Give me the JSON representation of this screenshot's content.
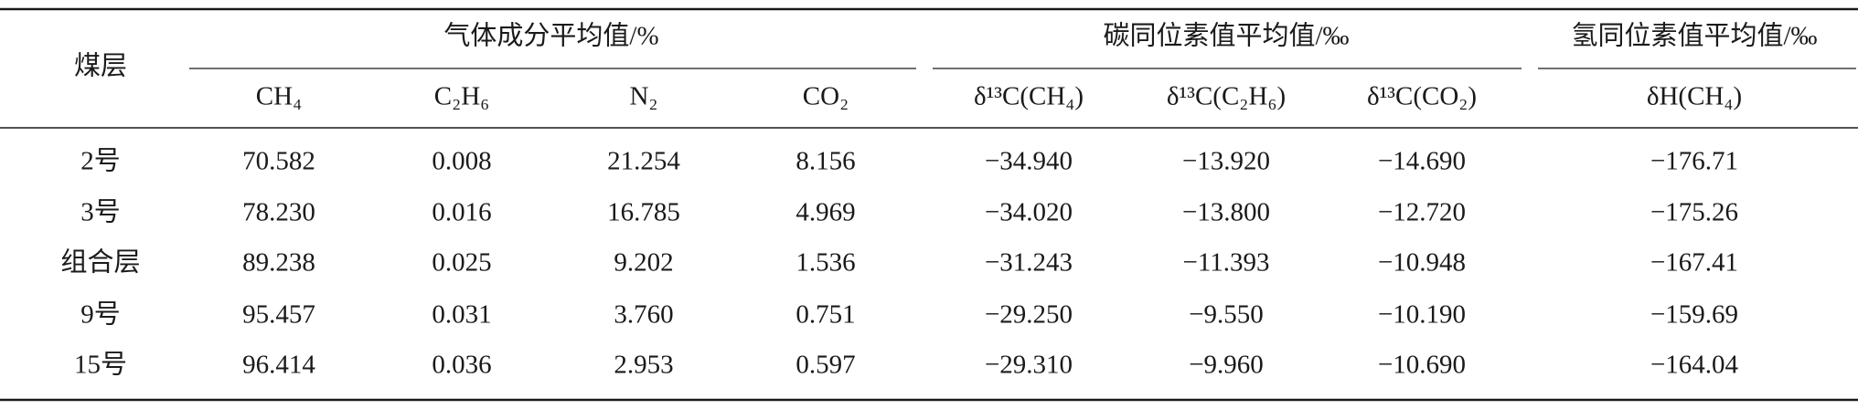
{
  "table": {
    "row_header": "煤层",
    "groups": [
      "气体成分平均值/%",
      "碳同位素值平均值/‰",
      "氢同位素值平均值/‰"
    ],
    "columns": [
      "CH₄",
      "C₂H₆",
      "N₂",
      "CO₂",
      "δ¹³C(CH₄)",
      "δ¹³C(C₂H₆)",
      "δ¹³C(CO₂)",
      "δH(CH₄)"
    ],
    "rows": [
      [
        "2号",
        "70.582",
        "0.008",
        "21.254",
        "8.156",
        "−34.940",
        "−13.920",
        "−14.690",
        "−176.71"
      ],
      [
        "3号",
        "78.230",
        "0.016",
        "16.785",
        "4.969",
        "−34.020",
        "−13.800",
        "−12.720",
        "−175.26"
      ],
      [
        "组合层",
        "89.238",
        "0.025",
        "9.202",
        "1.536",
        "−31.243",
        "−11.393",
        "−10.948",
        "−167.41"
      ],
      [
        "9号",
        "95.457",
        "0.031",
        "3.760",
        "0.751",
        "−29.250",
        "−9.550",
        "−10.190",
        "−159.69"
      ],
      [
        "15号",
        "96.414",
        "0.036",
        "2.953",
        "0.597",
        "−29.310",
        "−9.960",
        "−10.690",
        "−164.04"
      ]
    ]
  }
}
